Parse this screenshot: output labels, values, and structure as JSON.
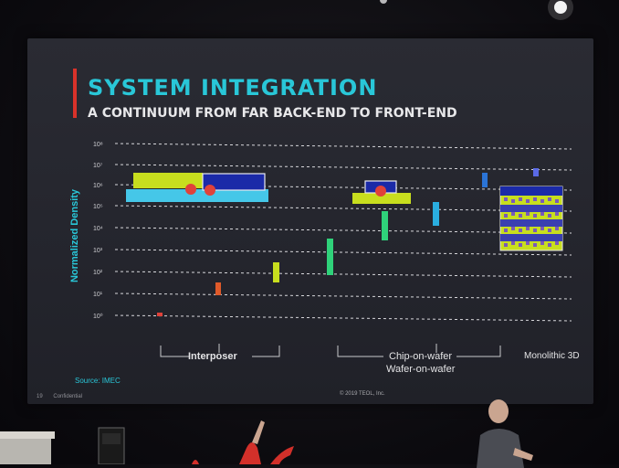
{
  "slide": {
    "title": "SYSTEM INTEGRATION",
    "subtitle": "A CONTINUUM FROM FAR BACK-END TO FRONT-END",
    "y_axis_label": "Normalized Density",
    "source": "Source: IMEC",
    "footer_left": [
      "19",
      "Confidential"
    ],
    "footer_center": "© 2019 TEOL, Inc."
  },
  "chart_data": {
    "type": "bar",
    "ylabel": "Normalized Density",
    "y_ticks": [
      "10⁰",
      "10¹",
      "10²",
      "10³",
      "10⁴",
      "10⁵",
      "10⁶",
      "10⁷",
      "10⁸"
    ],
    "y_scale": "log",
    "grid": true,
    "categories": [
      "Interposer",
      "Chip-on-wafer / Wafer-on-wafer",
      "Monolithic 3D"
    ],
    "category_labels": {
      "interposer": "Interposer",
      "chip_on_wafer": "Chip-on-wafer",
      "wafer_on_wafer": "Wafer-on-wafer",
      "monolithic": "Monolithic 3D"
    },
    "colors": {
      "red": "#e0423a",
      "orange": "#e05a2a",
      "yellow": "#c8de1e",
      "green": "#2fd27a",
      "cyan": "#45c7e8",
      "blue": "#2b74d6",
      "navy": "#1b2aa8",
      "grid": "#d8d8dc"
    }
  }
}
